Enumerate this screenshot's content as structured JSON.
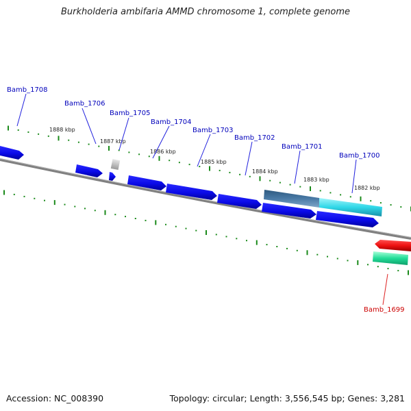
{
  "title": "Burkholderia ambifaria AMMD chromosome 1, complete genome",
  "footer": {
    "accession": "Accession: NC_008390",
    "summary": "Topology: circular; Length: 3,556,545 bp; Genes: 3,281"
  },
  "colors": {
    "forward_gene": "#0a0af0",
    "reverse_gene": "#ee1111",
    "rna_gene": "#30d8e8",
    "green_gene": "#22dd99",
    "pseudo_gene": "#bbbbbb",
    "backbone": "#808080",
    "tick": "#1a8a1a",
    "forward_label": "#0000bb",
    "reverse_label": "#cc0000"
  },
  "scale_labels": [
    "1888 kbp",
    "1887 kbp",
    "1886 kbp",
    "1885 kbp",
    "1884 kbp",
    "1883 kbp",
    "1882 kbp"
  ],
  "genes": [
    {
      "id": "Bamb_1708",
      "strand": "forward"
    },
    {
      "id": "Bamb_1706",
      "strand": "forward"
    },
    {
      "id": "Bamb_1705",
      "strand": "forward"
    },
    {
      "id": "Bamb_1704",
      "strand": "forward"
    },
    {
      "id": "Bamb_1703",
      "strand": "forward"
    },
    {
      "id": "Bamb_1702",
      "strand": "forward"
    },
    {
      "id": "Bamb_1701",
      "strand": "forward"
    },
    {
      "id": "Bamb_1700",
      "strand": "forward"
    },
    {
      "id": "Bamb_1699",
      "strand": "reverse"
    }
  ]
}
